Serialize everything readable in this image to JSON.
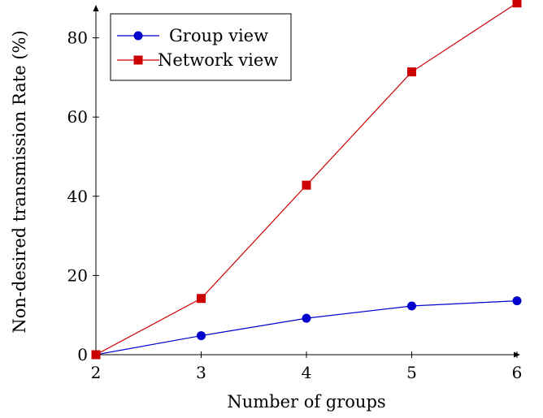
{
  "chart_data": {
    "type": "line",
    "title": "",
    "xlabel": "Number of groups",
    "ylabel": "Non-desired transmission Rate (%)",
    "x": [
      2,
      3,
      4,
      5,
      6
    ],
    "xlim": [
      2,
      6
    ],
    "ylim": [
      0,
      88
    ],
    "xticks": [
      "2",
      "3",
      "4",
      "5",
      "6"
    ],
    "yticks": [
      "0",
      "20",
      "40",
      "60",
      "80"
    ],
    "grid": false,
    "legend_position": "top-left",
    "series": [
      {
        "name": "Group view",
        "marker": "circle",
        "color": "#0000cc",
        "values": [
          0,
          4.8,
          9.2,
          12.3,
          13.6
        ]
      },
      {
        "name": "Network view",
        "marker": "square",
        "color": "#cc0000",
        "values": [
          0,
          14.2,
          42.8,
          71.4,
          88.8
        ]
      }
    ]
  }
}
